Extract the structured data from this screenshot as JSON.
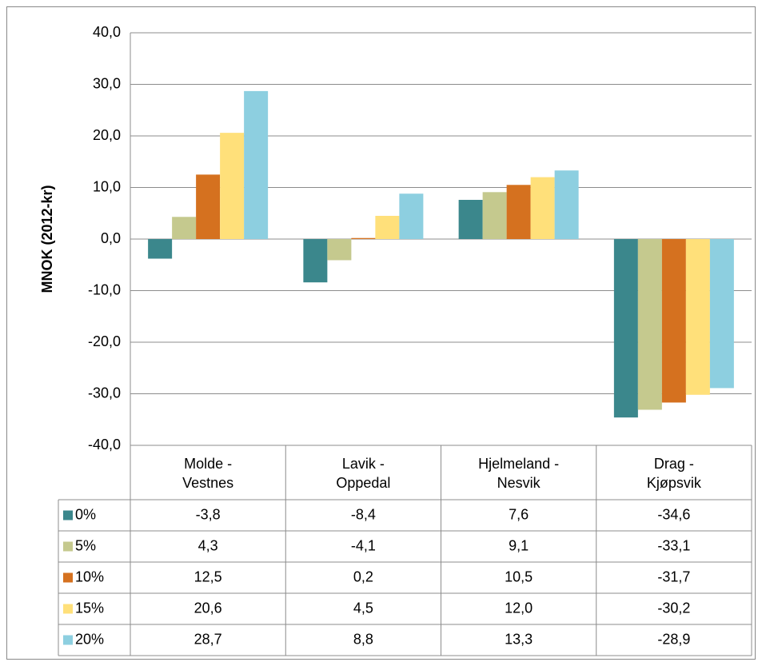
{
  "chart_data": {
    "type": "bar",
    "y_label": "MNOK (2012-kr)",
    "categories": [
      "Molde -\nVestnes",
      "Lavik -\nOppedal",
      "Hjelmeland -\nNesvik",
      "Drag -\nKjøpsvik"
    ],
    "series": [
      {
        "name": "0%",
        "color": "#3b878c",
        "values": [
          -3.8,
          -8.4,
          7.6,
          -34.6
        ],
        "value_labels": [
          "-3,8",
          "-8,4",
          "7,6",
          "-34,6"
        ]
      },
      {
        "name": "5%",
        "color": "#c5c98e",
        "values": [
          4.3,
          -4.1,
          9.1,
          -33.1
        ],
        "value_labels": [
          "4,3",
          "-4,1",
          "9,1",
          "-33,1"
        ]
      },
      {
        "name": "10%",
        "color": "#d5711f",
        "values": [
          12.5,
          0.2,
          10.5,
          -31.7
        ],
        "value_labels": [
          "12,5",
          "0,2",
          "10,5",
          "-31,7"
        ]
      },
      {
        "name": "15%",
        "color": "#ffe07a",
        "values": [
          20.6,
          4.5,
          12.0,
          -30.2
        ],
        "value_labels": [
          "20,6",
          "4,5",
          "12,0",
          "-30,2"
        ]
      },
      {
        "name": "20%",
        "color": "#8dcfe0",
        "values": [
          28.7,
          8.8,
          13.3,
          -28.9
        ],
        "value_labels": [
          "28,7",
          "8,8",
          "13,3",
          "-28,9"
        ]
      }
    ],
    "ylim": [
      -40,
      40
    ],
    "yticks": [
      {
        "value": -40,
        "label": "-40,0"
      },
      {
        "value": -30,
        "label": "-30,0"
      },
      {
        "value": -20,
        "label": "-20,0"
      },
      {
        "value": -10,
        "label": "-10,0"
      },
      {
        "value": 0,
        "label": "0,0"
      },
      {
        "value": 10,
        "label": "10,0"
      },
      {
        "value": 20,
        "label": "20,0"
      },
      {
        "value": 30,
        "label": "30,0"
      },
      {
        "value": 40,
        "label": "40,0"
      }
    ],
    "grid": true
  }
}
